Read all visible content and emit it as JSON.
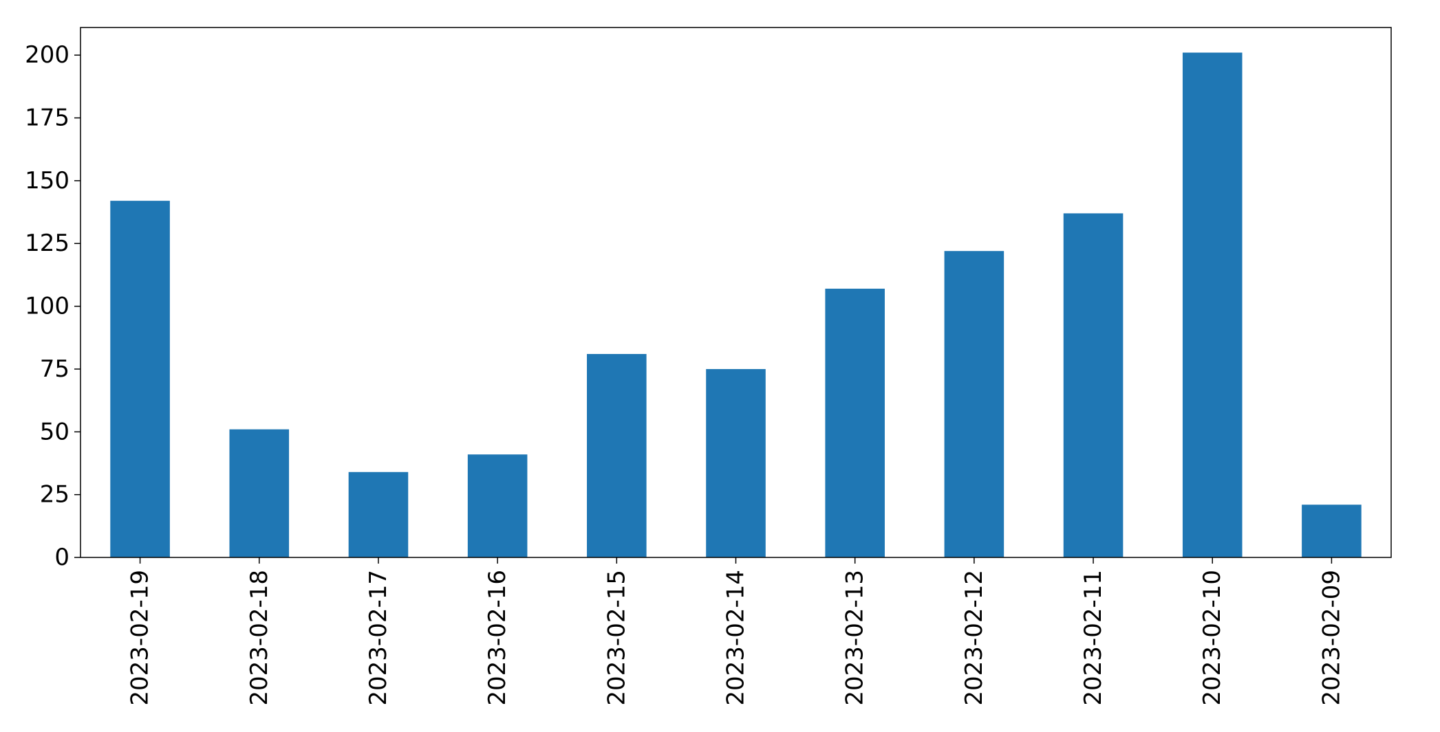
{
  "chart_data": {
    "type": "bar",
    "title": "",
    "xlabel": "",
    "ylabel": "",
    "categories": [
      "2023-02-19",
      "2023-02-18",
      "2023-02-17",
      "2023-02-16",
      "2023-02-15",
      "2023-02-14",
      "2023-02-13",
      "2023-02-12",
      "2023-02-11",
      "2023-02-10",
      "2023-02-09"
    ],
    "values": [
      142,
      51,
      34,
      41,
      81,
      75,
      107,
      122,
      137,
      201,
      21
    ],
    "ylim": [
      0,
      211
    ],
    "yticks": [
      0,
      25,
      50,
      75,
      100,
      125,
      150,
      175,
      200
    ],
    "bar_color": "#1f77b4",
    "grid": false,
    "legend": "none"
  }
}
